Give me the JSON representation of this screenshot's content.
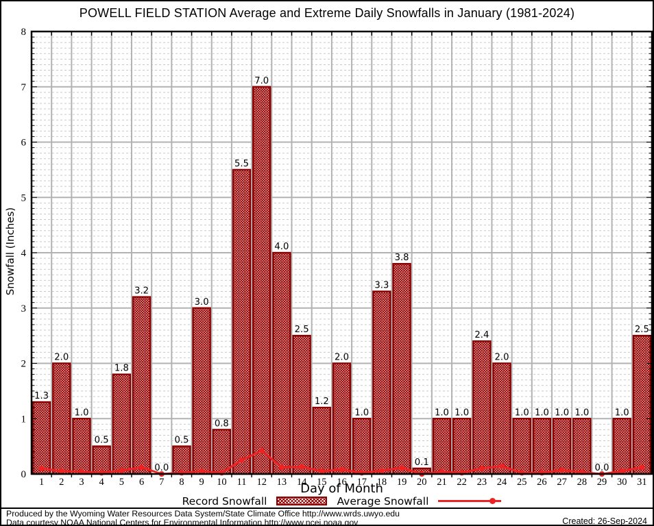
{
  "title": "POWELL FIELD STATION Average and Extreme Daily Snowfalls in January (1981-2024)",
  "chart_data": {
    "type": "bar",
    "title": "POWELL FIELD STATION Average and Extreme Daily Snowfalls in January (1981-2024)",
    "xlabel": "Day of Month",
    "ylabel": "Snowfall (Inches)",
    "ylim": [
      0,
      8
    ],
    "y_major_step": 1,
    "y_minor_step": 0.1,
    "grid": {
      "major": "solid-gray-both-axes",
      "minor": "dashed-horizontal-every-0.1"
    },
    "legend_position": "bottom",
    "categories": [
      1,
      2,
      3,
      4,
      5,
      6,
      7,
      8,
      9,
      10,
      11,
      12,
      13,
      14,
      15,
      16,
      17,
      18,
      19,
      20,
      21,
      22,
      23,
      24,
      25,
      26,
      27,
      28,
      29,
      30,
      31
    ],
    "series": [
      {
        "name": "Record Snowfall",
        "type": "bar",
        "values": [
          1.3,
          2.0,
          1.0,
          0.5,
          1.8,
          3.2,
          0.0,
          0.5,
          3.0,
          0.8,
          5.5,
          7.0,
          4.0,
          2.5,
          1.2,
          2.0,
          1.0,
          3.3,
          3.8,
          0.1,
          1.0,
          1.0,
          2.4,
          2.0,
          1.0,
          1.0,
          1.0,
          1.0,
          0.0,
          1.0,
          2.5
        ]
      },
      {
        "name": "Average Snowfall",
        "type": "line",
        "values": [
          0.1,
          0.05,
          0.04,
          0.02,
          0.06,
          0.12,
          0.0,
          0.02,
          0.05,
          0.02,
          0.25,
          0.42,
          0.12,
          0.13,
          0.05,
          0.08,
          0.02,
          0.06,
          0.11,
          0.0,
          0.04,
          0.02,
          0.1,
          0.14,
          0.02,
          0.02,
          0.07,
          0.03,
          0.0,
          0.05,
          0.12
        ]
      }
    ]
  },
  "legend": {
    "record_label": "Record Snowfall",
    "average_label": "Average Snowfall"
  },
  "colors": {
    "bar_fill": "#990000",
    "bar_border": "#8b0000",
    "average_line": "#ee2222",
    "grid_major": "#b2b2b2",
    "grid_minor": "#c9c9c9",
    "frame": "#000000",
    "background": "#ffffff"
  },
  "footer": {
    "line1": "Produced by the Wyoming Water Resources Data System/State Climate Office http://www.wrds.uwyo.edu",
    "line2": "Data courtesy NOAA National Centers for Environmental Information http://www.ncei.noaa.gov",
    "created": "Created: 26-Sep-2024"
  }
}
